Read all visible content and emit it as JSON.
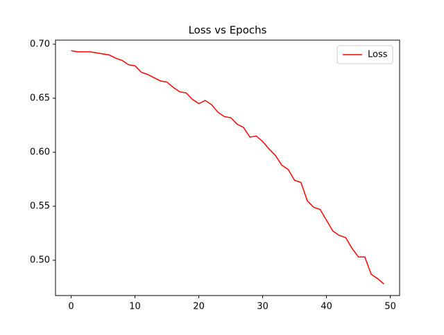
{
  "chart_data": {
    "type": "line",
    "title": "Loss vs Epochs",
    "x": [
      0,
      1,
      2,
      3,
      4,
      5,
      6,
      7,
      8,
      9,
      10,
      11,
      12,
      13,
      14,
      15,
      16,
      17,
      18,
      19,
      20,
      21,
      22,
      23,
      24,
      25,
      26,
      27,
      28,
      29,
      30,
      31,
      32,
      33,
      34,
      35,
      36,
      37,
      38,
      39,
      40,
      41,
      42,
      43,
      44,
      45,
      46,
      47,
      48,
      49
    ],
    "series": [
      {
        "name": "Loss",
        "color": "#ff0000",
        "values": [
          0.694,
          0.693,
          0.693,
          0.693,
          0.692,
          0.691,
          0.69,
          0.687,
          0.685,
          0.681,
          0.68,
          0.674,
          0.672,
          0.669,
          0.666,
          0.665,
          0.66,
          0.656,
          0.655,
          0.649,
          0.645,
          0.648,
          0.644,
          0.637,
          0.633,
          0.632,
          0.626,
          0.623,
          0.614,
          0.615,
          0.61,
          0.603,
          0.597,
          0.588,
          0.584,
          0.574,
          0.572,
          0.555,
          0.549,
          0.547,
          0.537,
          0.527,
          0.523,
          0.521,
          0.511,
          0.503,
          0.503,
          0.487,
          0.483,
          0.478
        ]
      }
    ],
    "xlim": [
      -2.45,
      51.45
    ],
    "xticks": [
      0,
      10,
      20,
      30,
      40,
      50
    ],
    "ylim": [
      0.4673,
      0.7038
    ],
    "yticks": [
      {
        "value": 0.5,
        "label": "0.50"
      },
      0.55,
      {
        "value": 0.6,
        "label": "0.60"
      },
      0.65,
      {
        "value": 0.7,
        "label": "0.70"
      }
    ],
    "legend": "upper right"
  }
}
